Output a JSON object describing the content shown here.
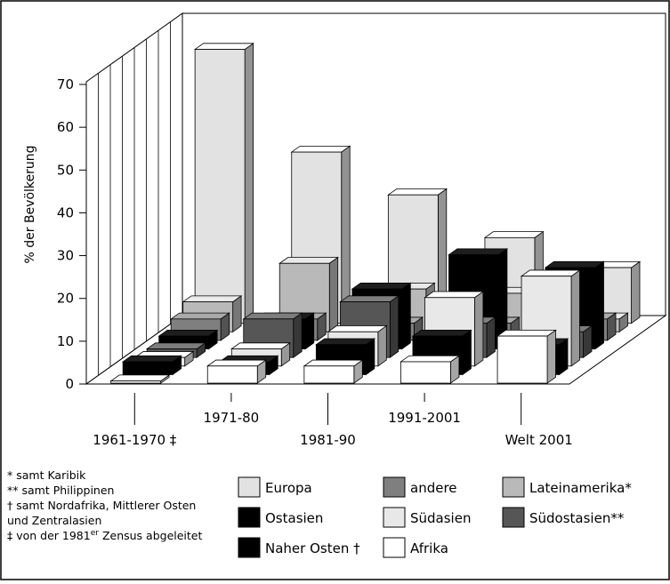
{
  "chart_data": {
    "type": "bar3d",
    "y_label": "% der Bevölkerung",
    "categories": [
      "1961-1970 ‡",
      "1971-80",
      "1981-90",
      "1991-2001",
      "Welt 2001"
    ],
    "ylim": [
      0,
      70
    ],
    "yticks": [
      0,
      10,
      20,
      30,
      40,
      50,
      60,
      70
    ],
    "series": [
      {
        "name": "Europa",
        "color": "#e2e2e2",
        "values": [
          64,
          40,
          30,
          20,
          13
        ]
      },
      {
        "name": "Ostasien",
        "color": "#000000",
        "values": [
          3,
          7,
          14,
          22,
          19
        ]
      },
      {
        "name": "Naher Osten †",
        "color": "#000000",
        "values": [
          3,
          3,
          7,
          9,
          7
        ]
      },
      {
        "name": "andere",
        "color": "#7f7f7f",
        "values": [
          5,
          5,
          4,
          4,
          5
        ]
      },
      {
        "name": "Südasien",
        "color": "#e8e8e8",
        "values": [
          2,
          4,
          8,
          16,
          21
        ]
      },
      {
        "name": "Afrika",
        "color": "#ffffff",
        "values": [
          0.5,
          4,
          4,
          5,
          11
        ]
      },
      {
        "name": "Lateinamerika*",
        "color": "#b9b9b9",
        "values": [
          7,
          16,
          10,
          9,
          3
        ]
      },
      {
        "name": "Südostasien**",
        "color": "#565656",
        "values": [
          2,
          9,
          13,
          8,
          6
        ]
      }
    ],
    "footnotes": [
      "* samt Karibik",
      "** samt Philippinen",
      "† samt Nordafrika, Mittlerer Osten",
      "und Zentralasien",
      {
        "before": "‡ von der 1981",
        "sup": "er",
        "after": " Zensus abgeleitet"
      }
    ]
  }
}
